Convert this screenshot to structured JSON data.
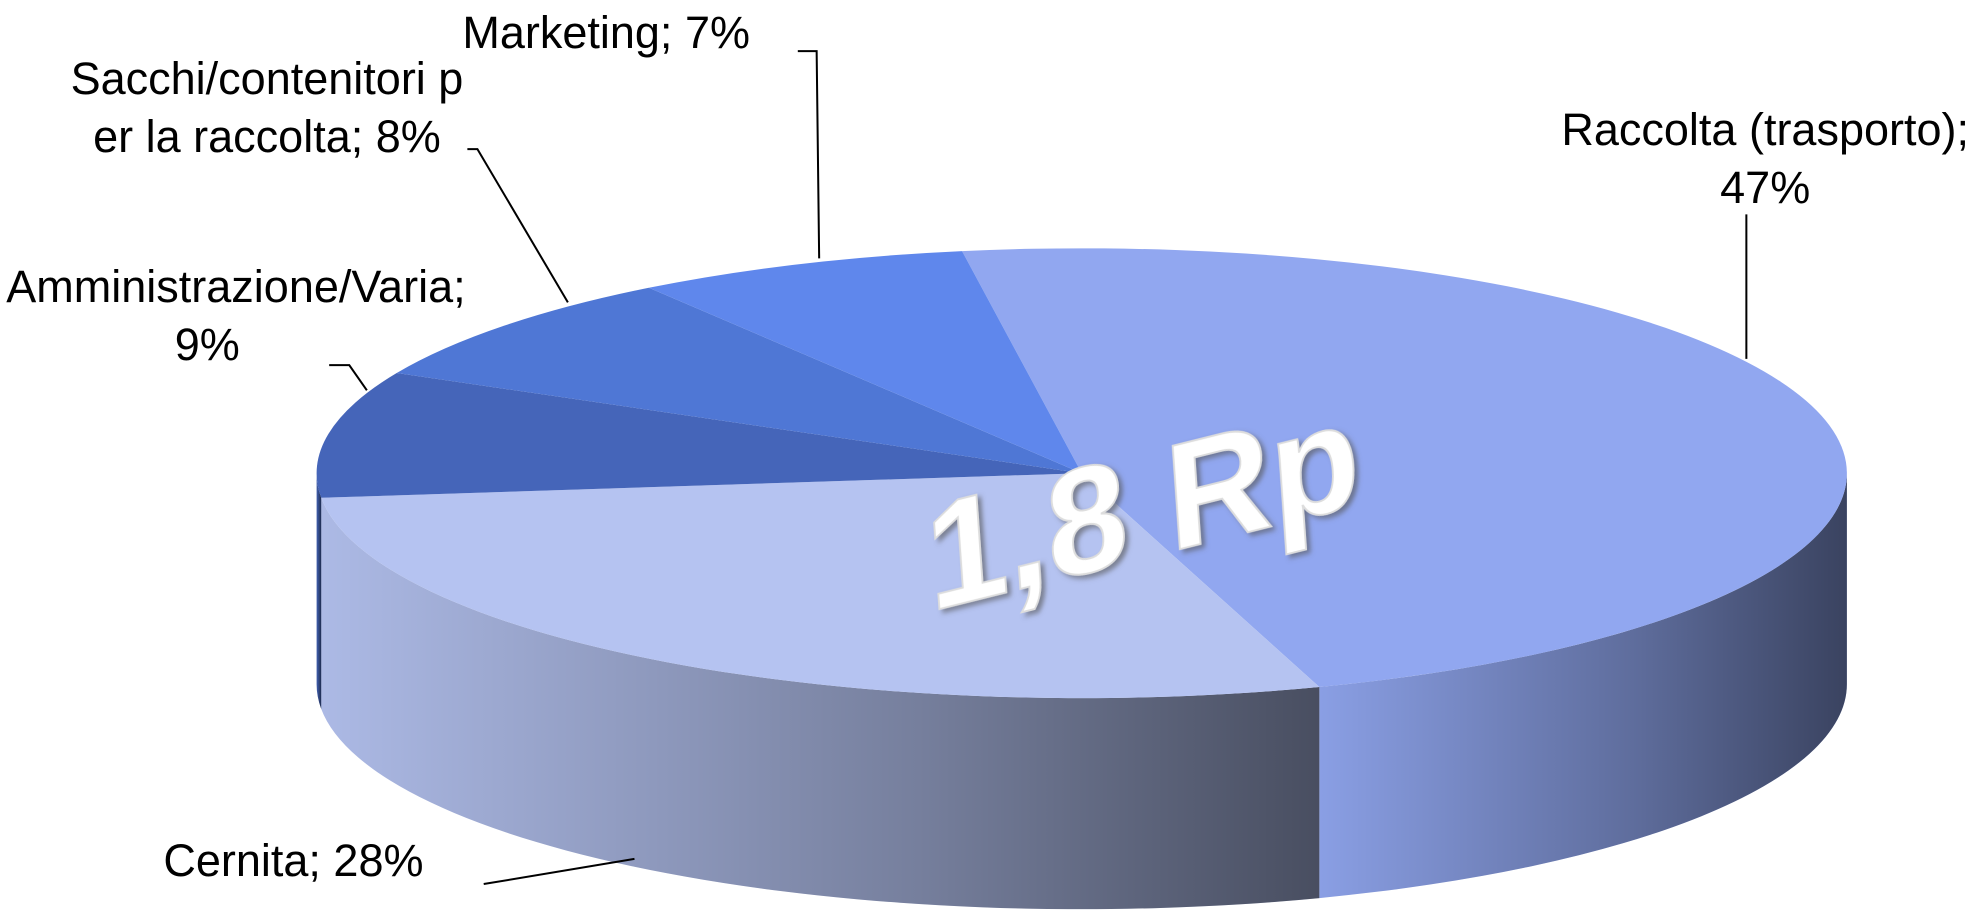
{
  "chart_data": {
    "type": "pie3d",
    "center_label": "1,8 Rp",
    "label_separator": "; ",
    "categories": [
      "Raccolta (trasporto)",
      "Cernita",
      "Amministrazione/Varia",
      "Sacchi/contenitori per la raccolta",
      "Marketing"
    ],
    "values": [
      47,
      28,
      9,
      8,
      7
    ],
    "value_labels": [
      "47%",
      "28%",
      "9%",
      "8%",
      "7%"
    ],
    "colors": [
      "#91a7f0",
      "#b5c3f1",
      "#4565b9",
      "#4f77d5",
      "#5f87ec"
    ]
  }
}
